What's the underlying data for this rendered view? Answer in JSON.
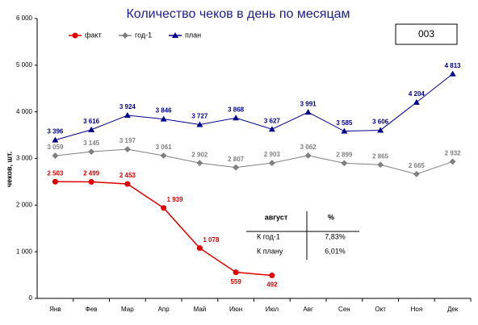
{
  "chart_data": {
    "type": "line",
    "title": "Количество чеков в день по месяцам",
    "badge": "003",
    "y_label": "чеков, шт.",
    "categories": [
      "Янв",
      "Фев",
      "Мар",
      "Апр",
      "Май",
      "Июн",
      "Июл",
      "Авг",
      "Сен",
      "Окт",
      "Ноя",
      "Дек"
    ],
    "ylim": [
      0,
      6000
    ],
    "yticks": [
      {
        "value": 0,
        "label": "0"
      },
      {
        "value": 1000,
        "label": "1 000"
      },
      {
        "value": 2000,
        "label": "2 000"
      },
      {
        "value": 3000,
        "label": "3 000"
      },
      {
        "value": 4000,
        "label": "4 000"
      },
      {
        "value": 5000,
        "label": "5 000"
      },
      {
        "value": 6000,
        "label": "6 000"
      }
    ],
    "grid": false,
    "legend": "top-left",
    "series": [
      {
        "name": "факт",
        "color": "#e00000",
        "marker": "circle",
        "values": [
          2503,
          2499,
          2453,
          1939,
          1078,
          559,
          492,
          null,
          null,
          null,
          null,
          null
        ],
        "value_labels": [
          "2 503",
          "2 499",
          "2 453",
          "1 939",
          "1 078",
          "559",
          "492",
          null,
          null,
          null,
          null,
          null
        ]
      },
      {
        "name": "год-1",
        "color": "#808080",
        "marker": "diamond",
        "values": [
          3059,
          3145,
          3197,
          3061,
          2902,
          2807,
          2903,
          3062,
          2899,
          2865,
          2665,
          2932
        ],
        "value_labels": [
          "3 059",
          "3 145",
          "3 197",
          "3 061",
          "2 902",
          "2 807",
          "2 903",
          "3 062",
          "2 899",
          "2 865",
          "2 665",
          "2 932"
        ]
      },
      {
        "name": "план",
        "color": "#00008b",
        "marker": "triangle",
        "values": [
          3396,
          3616,
          3924,
          3846,
          3727,
          3868,
          3627,
          3991,
          3585,
          3606,
          4204,
          4813
        ],
        "value_labels": [
          "3 396",
          "3 616",
          "3 924",
          "3 846",
          "3 727",
          "3 868",
          "3 627",
          "3 991",
          "3 585",
          "3 606",
          "4 204",
          "4 813"
        ]
      }
    ],
    "table": {
      "header": [
        "август",
        "%"
      ],
      "rows": [
        [
          "К год-1",
          "7,83%"
        ],
        [
          "К плану",
          "6,01%"
        ]
      ]
    }
  }
}
